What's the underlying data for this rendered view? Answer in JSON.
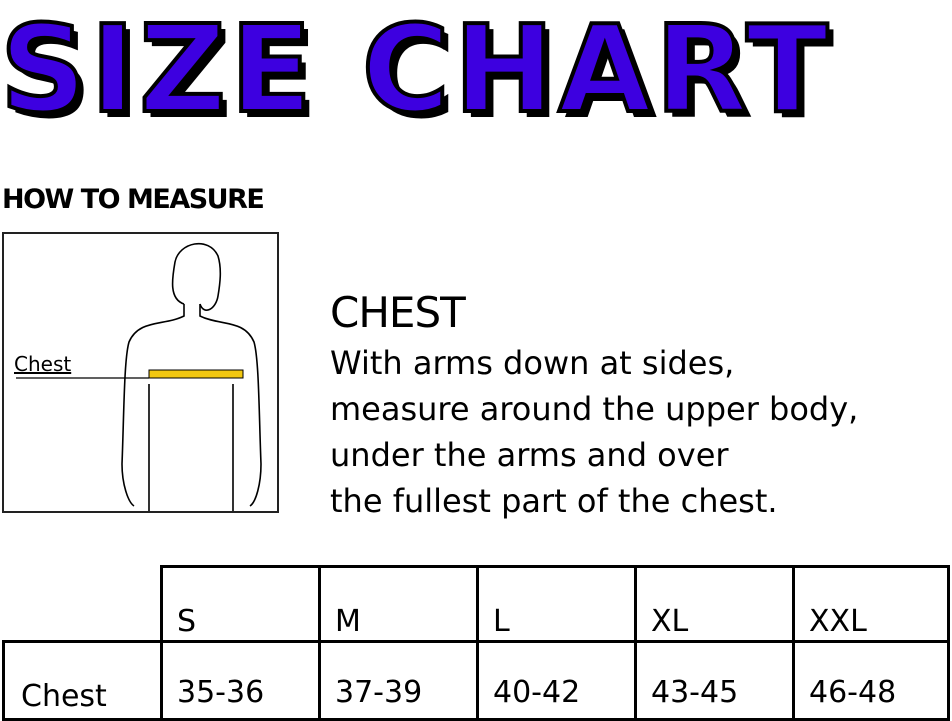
{
  "title": "SIZE CHART",
  "how_to_measure": "HOW TO MEASURE",
  "figure": {
    "label": "Chest",
    "tape_color": "#f2c811"
  },
  "chest_heading": "CHEST",
  "instructions": [
    "With arms down at sides,",
    "measure around the upper body,",
    "under the arms and over",
    "the fullest part of the chest."
  ],
  "table": {
    "row_label": "Chest",
    "sizes": [
      "S",
      "M",
      "L",
      "XL",
      "XXL"
    ],
    "chest": [
      "35-36",
      "37-39",
      "40-42",
      "43-45",
      "46-48"
    ]
  },
  "colors": {
    "title": "#3d00e0"
  }
}
